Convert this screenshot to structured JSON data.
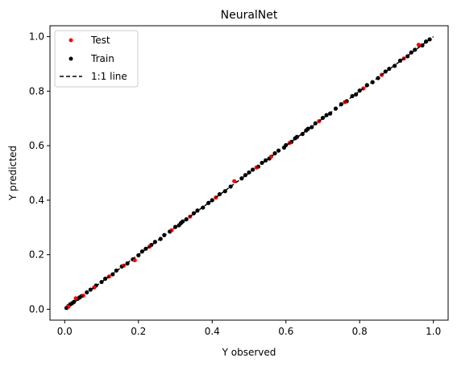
{
  "chart_data": {
    "type": "scatter",
    "title": "NeuralNet",
    "xlabel": "Y observed",
    "ylabel": "Y predicted",
    "xlim": [
      -0.04,
      1.04
    ],
    "ylim": [
      -0.04,
      1.04
    ],
    "xticks": [
      0.0,
      0.2,
      0.4,
      0.6,
      0.8,
      1.0
    ],
    "yticks": [
      0.0,
      0.2,
      0.4,
      0.6,
      0.8,
      1.0
    ],
    "xtick_labels": [
      "0.0",
      "0.2",
      "0.4",
      "0.6",
      "0.8",
      "1.0"
    ],
    "ytick_labels": [
      "0.0",
      "0.2",
      "0.4",
      "0.6",
      "0.8",
      "1.0"
    ],
    "grid": false,
    "legend_position": "top-left",
    "series": [
      {
        "name": "Test",
        "color": "#ff0000",
        "marker": "dot",
        "x": [
          0.01,
          0.03,
          0.05,
          0.08,
          0.12,
          0.16,
          0.19,
          0.23,
          0.29,
          0.34,
          0.41,
          0.46,
          0.52,
          0.56,
          0.61,
          0.69,
          0.76,
          0.81,
          0.86,
          0.92,
          0.96
        ],
        "y": [
          0.01,
          0.04,
          0.05,
          0.08,
          0.12,
          0.16,
          0.18,
          0.23,
          0.29,
          0.34,
          0.41,
          0.47,
          0.52,
          0.56,
          0.61,
          0.69,
          0.76,
          0.81,
          0.86,
          0.92,
          0.97
        ]
      },
      {
        "name": "Train",
        "color": "#000000",
        "marker": "dot",
        "x": [
          0.005,
          0.01,
          0.015,
          0.02,
          0.025,
          0.035,
          0.04,
          0.045,
          0.06,
          0.07,
          0.085,
          0.1,
          0.11,
          0.13,
          0.14,
          0.155,
          0.17,
          0.185,
          0.2,
          0.21,
          0.22,
          0.235,
          0.245,
          0.26,
          0.27,
          0.285,
          0.3,
          0.31,
          0.315,
          0.32,
          0.33,
          0.35,
          0.36,
          0.375,
          0.39,
          0.4,
          0.42,
          0.435,
          0.45,
          0.48,
          0.49,
          0.5,
          0.51,
          0.525,
          0.535,
          0.545,
          0.555,
          0.57,
          0.58,
          0.595,
          0.6,
          0.615,
          0.625,
          0.63,
          0.645,
          0.655,
          0.66,
          0.67,
          0.68,
          0.7,
          0.71,
          0.72,
          0.735,
          0.75,
          0.765,
          0.78,
          0.79,
          0.8,
          0.82,
          0.835,
          0.85,
          0.87,
          0.88,
          0.895,
          0.91,
          0.93,
          0.94,
          0.95,
          0.97,
          0.98,
          0.99
        ],
        "y": [
          0.005,
          0.012,
          0.018,
          0.022,
          0.027,
          0.038,
          0.043,
          0.048,
          0.062,
          0.072,
          0.087,
          0.1,
          0.112,
          0.128,
          0.142,
          0.157,
          0.168,
          0.183,
          0.198,
          0.212,
          0.222,
          0.236,
          0.247,
          0.258,
          0.272,
          0.285,
          0.302,
          0.308,
          0.316,
          0.322,
          0.33,
          0.352,
          0.362,
          0.373,
          0.39,
          0.4,
          0.422,
          0.433,
          0.45,
          0.48,
          0.492,
          0.502,
          0.512,
          0.523,
          0.537,
          0.546,
          0.553,
          0.572,
          0.582,
          0.593,
          0.602,
          0.614,
          0.627,
          0.632,
          0.643,
          0.656,
          0.662,
          0.668,
          0.682,
          0.702,
          0.712,
          0.718,
          0.736,
          0.752,
          0.763,
          0.782,
          0.788,
          0.802,
          0.822,
          0.833,
          0.848,
          0.872,
          0.882,
          0.893,
          0.912,
          0.928,
          0.942,
          0.952,
          0.968,
          0.982,
          0.99
        ]
      },
      {
        "name": "1:1 line",
        "color": "#000000",
        "style": "dashed",
        "x": [
          0.0,
          1.0
        ],
        "y": [
          0.0,
          1.0
        ]
      }
    ]
  }
}
